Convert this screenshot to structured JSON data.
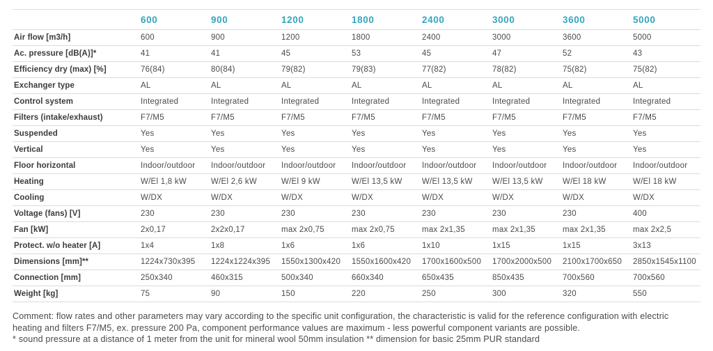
{
  "table": {
    "columns": [
      "600",
      "900",
      "1200",
      "1800",
      "2400",
      "3000",
      "3600",
      "5000"
    ],
    "rows": [
      {
        "label": "Air flow [m3/h]",
        "values": [
          "600",
          "900",
          "1200",
          "1800",
          "2400",
          "3000",
          "3600",
          "5000"
        ]
      },
      {
        "label": "Ac. pressure [dB(A)]*",
        "values": [
          "41",
          "41",
          "45",
          "53",
          "45",
          "47",
          "52",
          "43"
        ]
      },
      {
        "label": "Efficiency dry (max) [%]",
        "values": [
          "76(84)",
          "80(84)",
          "79(82)",
          "79(83)",
          "77(82)",
          "78(82)",
          "75(82)",
          "75(82)"
        ]
      },
      {
        "label": "Exchanger type",
        "values": [
          "AL",
          "AL",
          "AL",
          "AL",
          "AL",
          "AL",
          "AL",
          "AL"
        ]
      },
      {
        "label": "Control system",
        "values": [
          "Integrated",
          "Integrated",
          "Integrated",
          "Integrated",
          "Integrated",
          "Integrated",
          "Integrated",
          "Integrated"
        ]
      },
      {
        "label": "Filters (intake/exhaust)",
        "values": [
          "F7/M5",
          "F7/M5",
          "F7/M5",
          "F7/M5",
          "F7/M5",
          "F7/M5",
          "F7/M5",
          "F7/M5"
        ]
      },
      {
        "label": "Suspended",
        "values": [
          "Yes",
          "Yes",
          "Yes",
          "Yes",
          "Yes",
          "Yes",
          "Yes",
          "Yes"
        ]
      },
      {
        "label": "Vertical",
        "values": [
          "Yes",
          "Yes",
          "Yes",
          "Yes",
          "Yes",
          "Yes",
          "Yes",
          "Yes"
        ]
      },
      {
        "label": "Floor horizontal",
        "values": [
          "Indoor/outdoor",
          "Indoor/outdoor",
          "Indoor/outdoor",
          "Indoor/outdoor",
          "Indoor/outdoor",
          "Indoor/outdoor",
          "Indoor/outdoor",
          "Indoor/outdoor"
        ]
      },
      {
        "label": "Heating",
        "values": [
          "W/El 1,8 kW",
          "W/El 2,6 kW",
          "W/El 9 kW",
          "W/El 13,5 kW",
          "W/El 13,5 kW",
          "W/El 13,5 kW",
          "W/El 18 kW",
          "W/El 18 kW"
        ]
      },
      {
        "label": "Cooling",
        "values": [
          "W/DX",
          "W/DX",
          "W/DX",
          "W/DX",
          "W/DX",
          "W/DX",
          "W/DX",
          "W/DX"
        ]
      },
      {
        "label": "Voltage (fans) [V]",
        "values": [
          "230",
          "230",
          "230",
          "230",
          "230",
          "230",
          "230",
          "400"
        ]
      },
      {
        "label": "Fan [kW]",
        "values": [
          "2x0,17",
          "2x2x0,17",
          "max 2x0,75",
          "max 2x0,75",
          "max 2x1,35",
          "max 2x1,35",
          "max 2x1,35",
          "max 2x2,5"
        ]
      },
      {
        "label": "Protect. w/o heater [A]",
        "values": [
          "1x4",
          "1x8",
          "1x6",
          "1x6",
          "1x10",
          "1x15",
          "1x15",
          "3x13"
        ]
      },
      {
        "label": "Dimensions [mm]**",
        "values": [
          "1224x730x395",
          "1224x1224x395",
          "1550x1300x420",
          "1550x1600x420",
          "1700x1600x500",
          "1700x2000x500",
          "2100x1700x650",
          "2850x1545x1100"
        ]
      },
      {
        "label": "Connection [mm]",
        "values": [
          "250x340",
          "460x315",
          "500x340",
          "660x340",
          "650x435",
          "850x435",
          "700x560",
          "700x560"
        ]
      },
      {
        "label": "Weight [kg]",
        "values": [
          "75",
          "90",
          "150",
          "220",
          "250",
          "300",
          "320",
          "550"
        ]
      }
    ]
  },
  "footer": {
    "lines": [
      "Comment: flow rates and other parameters may vary according to the specific unit configuration, the characteristic is valid for the reference configuration with electric",
      "heating and filters F7/M5, ex. pressure 200 Pa, component performance values are maximum - less powerful component variants are possible.",
      "* sound pressure at a distance of 1 meter from the unit for mineral wool 50mm insulation ** dimension for basic 25mm PUR standard"
    ]
  },
  "colors": {
    "accent": "#35a6bd",
    "label_text": "#3b3b3b",
    "value_text": "#4a4a4a",
    "grid_line": "#d9dcdd"
  }
}
